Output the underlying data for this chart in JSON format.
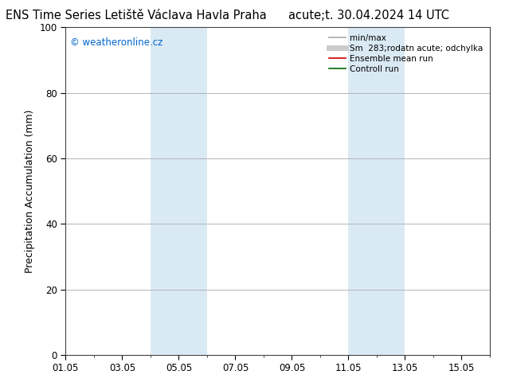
{
  "title_left": "ENS Time Series Letiště Václava Havla Praha",
  "title_right": "acute;t. 30.04.2024 14 UTC",
  "ylabel": "Precipitation Accumulation (mm)",
  "ylim": [
    0,
    100
  ],
  "yticks": [
    0,
    20,
    40,
    60,
    80,
    100
  ],
  "xtick_labels": [
    "01.05",
    "03.05",
    "05.05",
    "07.05",
    "09.05",
    "11.05",
    "13.05",
    "15.05"
  ],
  "xtick_positions_day": [
    1,
    3,
    5,
    7,
    9,
    11,
    13,
    15
  ],
  "shaded_regions": [
    {
      "start_day": 4,
      "end_day": 6,
      "color": "#daeaf5"
    },
    {
      "start_day": 11,
      "end_day": 13,
      "color": "#daeaf5"
    }
  ],
  "watermark_text": "© weatheronline.cz",
  "watermark_color": "#0066cc",
  "legend_entries": [
    {
      "label": "min/max",
      "color": "#aaaaaa",
      "lw": 1.2
    },
    {
      "label": "Sm  283;rodatn acute; odchylka",
      "color": "#cccccc",
      "lw": 5
    },
    {
      "label": "Ensemble mean run",
      "color": "#cc0000",
      "lw": 1.2
    },
    {
      "label": "Controll run",
      "color": "#006600",
      "lw": 1.2
    }
  ],
  "background_color": "#ffffff",
  "plot_bg_color": "#ffffff",
  "grid_color": "#aaaaaa",
  "title_fontsize": 10.5,
  "tick_fontsize": 8.5,
  "ylabel_fontsize": 9
}
